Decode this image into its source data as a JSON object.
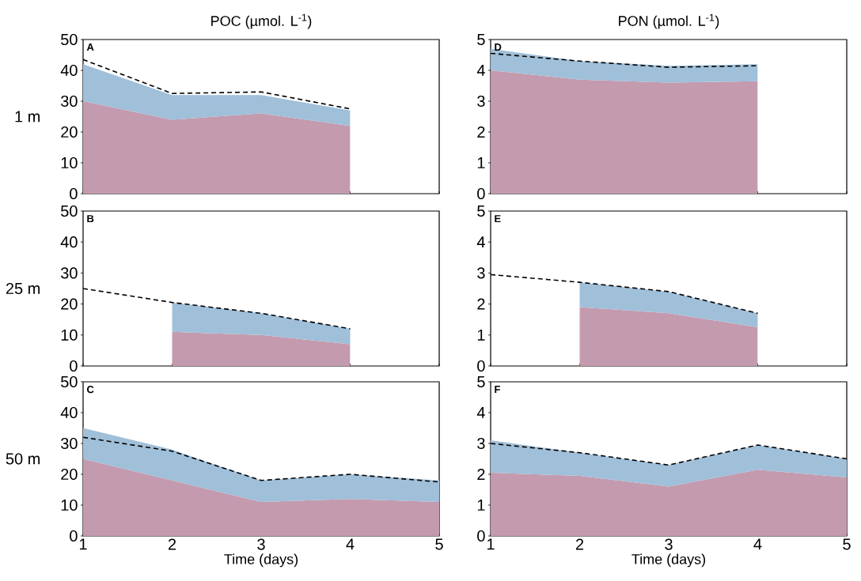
{
  "chart_data": [
    {
      "type": "area",
      "stacked": true,
      "title": "POC (µmol. L$^{-1}$)",
      "ylabel": "1 m",
      "annotations": [
        "A"
      ],
      "x": [
        1,
        2,
        3,
        4
      ],
      "xlim": [
        1,
        5
      ],
      "xticks": [
        1,
        2,
        3,
        4,
        5
      ],
      "ylim": [
        0,
        50
      ],
      "yticks": [
        0,
        10,
        20,
        30,
        40,
        50
      ],
      "tick_labels": "y",
      "series": [
        {
          "color": "#c49aae",
          "values": [
            30,
            24,
            26,
            22
          ]
        },
        {
          "color": "#a0bfd9",
          "values": [
            12,
            8,
            6,
            5
          ]
        },
        {
          "type": "line",
          "color": "#000000",
          "line_style": "dashed",
          "values": [
            43.5,
            32.5,
            33,
            27.5
          ]
        }
      ]
    },
    {
      "type": "area",
      "stacked": true,
      "title": "PON (µmol. L$^{-1}$)",
      "annotations": [
        "D"
      ],
      "x": [
        1,
        2,
        3,
        4
      ],
      "xlim": [
        1,
        5
      ],
      "xticks": [
        1,
        2,
        3,
        4,
        5
      ],
      "ylim": [
        0,
        5
      ],
      "yticks": [
        0,
        1,
        2,
        3,
        4,
        5
      ],
      "tick_labels": "y",
      "series": [
        {
          "color": "#c49aae",
          "values": [
            4.0,
            3.7,
            3.6,
            3.65
          ]
        },
        {
          "color": "#a0bfd9",
          "values": [
            0.7,
            0.6,
            0.55,
            0.55
          ]
        },
        {
          "type": "line",
          "color": "#000000",
          "line_style": "dashed",
          "values": [
            4.55,
            4.3,
            4.1,
            4.15
          ]
        }
      ]
    },
    {
      "type": "area",
      "stacked": true,
      "ylabel": "25 m",
      "annotations": [
        "B"
      ],
      "x": [
        1,
        2,
        3,
        4
      ],
      "xlim": [
        1,
        5
      ],
      "xticks": [
        1,
        2,
        3,
        4,
        5
      ],
      "ylim": [
        0,
        50
      ],
      "yticks": [
        0,
        10,
        20,
        30,
        40,
        50
      ],
      "tick_labels": "y",
      "series": [
        {
          "color": "#c49aae",
          "values": [
            null,
            11,
            10,
            7
          ]
        },
        {
          "color": "#a0bfd9",
          "values": [
            null,
            9.5,
            7,
            5
          ]
        },
        {
          "type": "line",
          "color": "#000000",
          "line_style": "dashed",
          "values": [
            25,
            20.5,
            17,
            12
          ]
        }
      ]
    },
    {
      "type": "area",
      "stacked": true,
      "annotations": [
        "E"
      ],
      "x": [
        1,
        2,
        3,
        4
      ],
      "xlim": [
        1,
        5
      ],
      "xticks": [
        1,
        2,
        3,
        4,
        5
      ],
      "ylim": [
        0,
        5
      ],
      "yticks": [
        0,
        1,
        2,
        3,
        4,
        5
      ],
      "tick_labels": "y",
      "series": [
        {
          "color": "#c49aae",
          "values": [
            null,
            1.9,
            1.7,
            1.25
          ]
        },
        {
          "color": "#a0bfd9",
          "values": [
            null,
            0.8,
            0.7,
            0.45
          ]
        },
        {
          "type": "line",
          "color": "#000000",
          "line_style": "dashed",
          "values": [
            2.95,
            2.7,
            2.4,
            1.7
          ]
        }
      ]
    },
    {
      "type": "area",
      "stacked": true,
      "ylabel": "50 m",
      "xlabel": "Time (days)",
      "annotations": [
        "C"
      ],
      "x": [
        1,
        2,
        3,
        4,
        5
      ],
      "xlim": [
        1,
        5
      ],
      "xticks": [
        1,
        2,
        3,
        4,
        5
      ],
      "ylim": [
        0,
        50
      ],
      "yticks": [
        0,
        10,
        20,
        30,
        40,
        50
      ],
      "series": [
        {
          "color": "#c49aae",
          "values": [
            25,
            18,
            11,
            12,
            11
          ]
        },
        {
          "color": "#a0bfd9",
          "values": [
            10,
            10,
            7,
            8,
            7
          ]
        },
        {
          "type": "line",
          "color": "#000000",
          "line_style": "dashed",
          "values": [
            32,
            27.5,
            18,
            20,
            17.5
          ]
        }
      ]
    },
    {
      "type": "area",
      "stacked": true,
      "xlabel": "Time (days)",
      "annotations": [
        "F"
      ],
      "x": [
        1,
        2,
        3,
        4,
        5
      ],
      "xlim": [
        1,
        5
      ],
      "xticks": [
        1,
        2,
        3,
        4,
        5
      ],
      "ylim": [
        0,
        5
      ],
      "yticks": [
        0,
        1,
        2,
        3,
        4,
        5
      ],
      "series": [
        {
          "color": "#c49aae",
          "values": [
            2.05,
            1.95,
            1.6,
            2.15,
            1.9
          ]
        },
        {
          "color": "#a0bfd9",
          "values": [
            1.05,
            0.75,
            0.7,
            0.8,
            0.6
          ]
        },
        {
          "type": "line",
          "color": "#000000",
          "line_style": "dashed",
          "values": [
            3.0,
            2.7,
            2.3,
            2.95,
            2.5
          ]
        }
      ]
    }
  ]
}
